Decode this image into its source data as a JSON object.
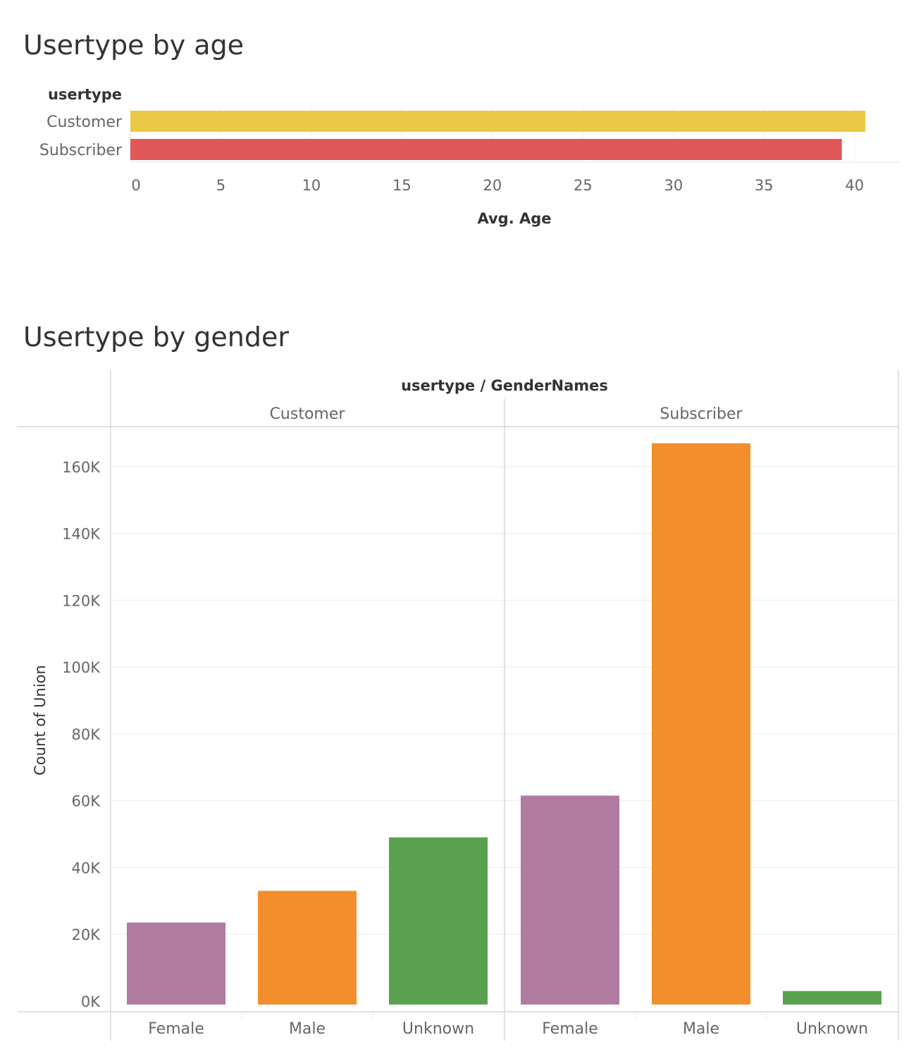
{
  "chart_data": [
    {
      "type": "bar",
      "orientation": "horizontal",
      "title": "Usertype by age",
      "row_header": "usertype",
      "categories": [
        "Customer",
        "Subscriber"
      ],
      "values": [
        40.6,
        39.3
      ],
      "colors": [
        "#ebc946",
        "#e0575a"
      ],
      "xlabel": "Avg. Age",
      "xlim": [
        0,
        42.5
      ],
      "xticks": [
        0,
        5,
        10,
        15,
        20,
        25,
        30,
        35,
        40
      ],
      "grid": "vertical"
    },
    {
      "type": "bar",
      "title": "Usertype by gender",
      "header": "usertype / GenderNames",
      "ylabel": "Count of Union",
      "ylim": [
        -3000,
        172000
      ],
      "yticks": [
        0,
        20000,
        40000,
        60000,
        80000,
        100000,
        120000,
        140000,
        160000
      ],
      "ytick_labels": [
        "0K",
        "20K",
        "40K",
        "60K",
        "80K",
        "100K",
        "120K",
        "140K",
        "160K"
      ],
      "grid": "horizontal",
      "colors": {
        "Female": "#b07aa1",
        "Male": "#f28e2b",
        "Unknown": "#59a14f"
      },
      "panels": [
        {
          "name": "Customer",
          "categories": [
            "Female",
            "Male",
            "Unknown"
          ],
          "values": [
            23500,
            33000,
            49000
          ]
        },
        {
          "name": "Subscriber",
          "categories": [
            "Female",
            "Male",
            "Unknown"
          ],
          "values": [
            61500,
            167000,
            3000
          ]
        }
      ]
    }
  ]
}
